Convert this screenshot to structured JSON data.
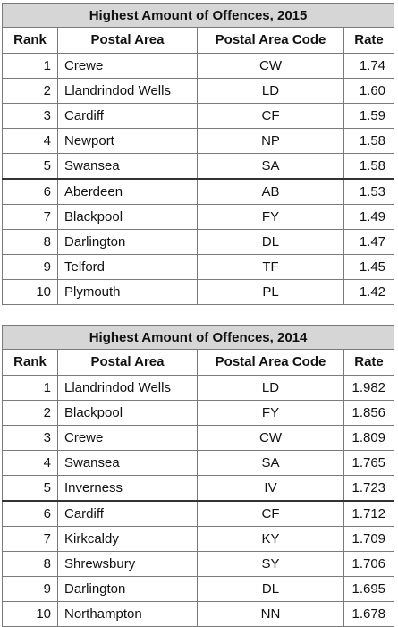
{
  "tables": [
    {
      "title": "Highest Amount of Offences, 2015",
      "headers": {
        "rank": "Rank",
        "area": "Postal Area",
        "code": "Postal Area Code",
        "rate": "Rate"
      },
      "rows": [
        {
          "rank": "1",
          "area": "Crewe",
          "code": "CW",
          "rate": "1.74"
        },
        {
          "rank": "2",
          "area": "Llandrindod Wells",
          "code": "LD",
          "rate": "1.60"
        },
        {
          "rank": "3",
          "area": "Cardiff",
          "code": "CF",
          "rate": "1.59"
        },
        {
          "rank": "4",
          "area": "Newport",
          "code": "NP",
          "rate": "1.58"
        },
        {
          "rank": "5",
          "area": "Swansea",
          "code": "SA",
          "rate": "1.58"
        },
        {
          "rank": "6",
          "area": "Aberdeen",
          "code": "AB",
          "rate": "1.53"
        },
        {
          "rank": "7",
          "area": "Blackpool",
          "code": "FY",
          "rate": "1.49"
        },
        {
          "rank": "8",
          "area": "Darlington",
          "code": "DL",
          "rate": "1.47"
        },
        {
          "rank": "9",
          "area": "Telford",
          "code": "TF",
          "rate": "1.45"
        },
        {
          "rank": "10",
          "area": "Plymouth",
          "code": "PL",
          "rate": "1.42"
        }
      ]
    },
    {
      "title": "Highest Amount of Offences, 2014",
      "headers": {
        "rank": "Rank",
        "area": "Postal Area",
        "code": "Postal Area Code",
        "rate": "Rate"
      },
      "rows": [
        {
          "rank": "1",
          "area": "Llandrindod Wells",
          "code": "LD",
          "rate": "1.982"
        },
        {
          "rank": "2",
          "area": "Blackpool",
          "code": "FY",
          "rate": "1.856"
        },
        {
          "rank": "3",
          "area": "Crewe",
          "code": "CW",
          "rate": "1.809"
        },
        {
          "rank": "4",
          "area": "Swansea",
          "code": "SA",
          "rate": "1.765"
        },
        {
          "rank": "5",
          "area": "Inverness",
          "code": "IV",
          "rate": "1.723"
        },
        {
          "rank": "6",
          "area": "Cardiff",
          "code": "CF",
          "rate": "1.712"
        },
        {
          "rank": "7",
          "area": "Kirkcaldy",
          "code": "KY",
          "rate": "1.709"
        },
        {
          "rank": "8",
          "area": "Shrewsbury",
          "code": "SY",
          "rate": "1.706"
        },
        {
          "rank": "9",
          "area": "Darlington",
          "code": "DL",
          "rate": "1.695"
        },
        {
          "rank": "10",
          "area": "Northampton",
          "code": "NN",
          "rate": "1.678"
        }
      ]
    }
  ]
}
